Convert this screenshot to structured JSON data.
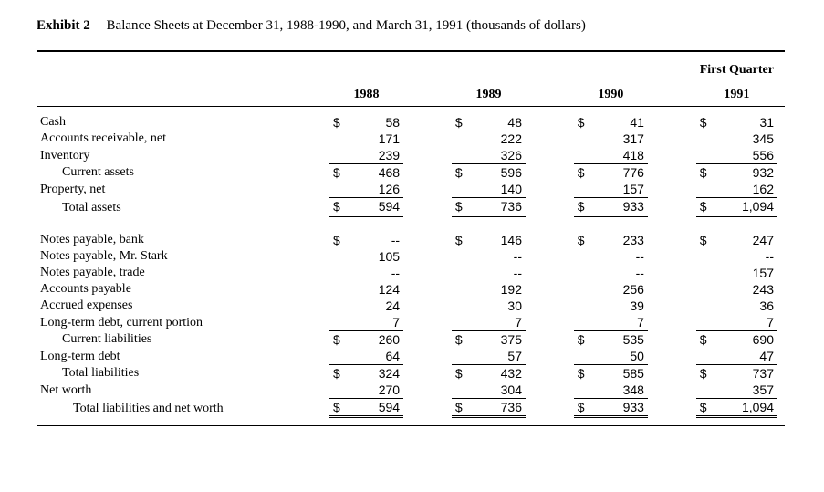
{
  "title": {
    "exhibit": "Exhibit 2",
    "caption": "Balance Sheets at December 31, 1988-1990, and March 31, 1991 (thousands of dollars)"
  },
  "columns": {
    "c1": "1988",
    "c2": "1989",
    "c3": "1990",
    "c4_super": "First Quarter",
    "c4": "1991"
  },
  "rows": {
    "cash": {
      "label": "Cash",
      "s1": "$",
      "v1": "58",
      "s2": "$",
      "v2": "48",
      "s3": "$",
      "v3": "41",
      "s4": "$",
      "v4": "31"
    },
    "ar": {
      "label": "Accounts receivable, net",
      "s1": "",
      "v1": "171",
      "s2": "",
      "v2": "222",
      "s3": "",
      "v3": "317",
      "s4": "",
      "v4": "345"
    },
    "inv": {
      "label": "Inventory",
      "s1": "",
      "v1": "239",
      "s2": "",
      "v2": "326",
      "s3": "",
      "v3": "418",
      "s4": "",
      "v4": "556"
    },
    "cur_assets": {
      "label": "Current assets",
      "s1": "$",
      "v1": "468",
      "s2": "$",
      "v2": "596",
      "s3": "$",
      "v3": "776",
      "s4": "$",
      "v4": "932"
    },
    "prop": {
      "label": "Property, net",
      "s1": "",
      "v1": "126",
      "s2": "",
      "v2": "140",
      "s3": "",
      "v3": "157",
      "s4": "",
      "v4": "162"
    },
    "tot_assets": {
      "label": "Total assets",
      "s1": "$",
      "v1": "594",
      "s2": "$",
      "v2": "736",
      "s3": "$",
      "v3": "933",
      "s4": "$",
      "v4": "1,094"
    },
    "np_bank": {
      "label": "Notes payable, bank",
      "s1": "$",
      "v1": "--",
      "s2": "$",
      "v2": "146",
      "s3": "$",
      "v3": "233",
      "s4": "$",
      "v4": "247"
    },
    "np_stark": {
      "label": "Notes payable, Mr. Stark",
      "s1": "",
      "v1": "105",
      "s2": "",
      "v2": "--",
      "s3": "",
      "v3": "--",
      "s4": "",
      "v4": "--"
    },
    "np_trade": {
      "label": "Notes payable, trade",
      "s1": "",
      "v1": "--",
      "s2": "",
      "v2": "--",
      "s3": "",
      "v3": "--",
      "s4": "",
      "v4": "157"
    },
    "ap": {
      "label": "Accounts payable",
      "s1": "",
      "v1": "124",
      "s2": "",
      "v2": "192",
      "s3": "",
      "v3": "256",
      "s4": "",
      "v4": "243"
    },
    "accr": {
      "label": "Accrued expenses",
      "s1": "",
      "v1": "24",
      "s2": "",
      "v2": "30",
      "s3": "",
      "v3": "39",
      "s4": "",
      "v4": "36"
    },
    "ltd_cur": {
      "label": "Long-term debt, current portion",
      "s1": "",
      "v1": "7",
      "s2": "",
      "v2": "7",
      "s3": "",
      "v3": "7",
      "s4": "",
      "v4": "7"
    },
    "cur_liab": {
      "label": "Current liabilities",
      "s1": "$",
      "v1": "260",
      "s2": "$",
      "v2": "375",
      "s3": "$",
      "v3": "535",
      "s4": "$",
      "v4": "690"
    },
    "ltd": {
      "label": "Long-term debt",
      "s1": "",
      "v1": "64",
      "s2": "",
      "v2": "57",
      "s3": "",
      "v3": "50",
      "s4": "",
      "v4": "47"
    },
    "tot_liab": {
      "label": "Total liabilities",
      "s1": "$",
      "v1": "324",
      "s2": "$",
      "v2": "432",
      "s3": "$",
      "v3": "585",
      "s4": "$",
      "v4": "737"
    },
    "nw": {
      "label": "Net worth",
      "s1": "",
      "v1": "270",
      "s2": "",
      "v2": "304",
      "s3": "",
      "v3": "348",
      "s4": "",
      "v4": "357"
    },
    "tot_lnw": {
      "label": "Total liabilities and net worth",
      "s1": "$",
      "v1": "594",
      "s2": "$",
      "v2": "736",
      "s3": "$",
      "v3": "933",
      "s4": "$",
      "v4": "1,094"
    }
  }
}
